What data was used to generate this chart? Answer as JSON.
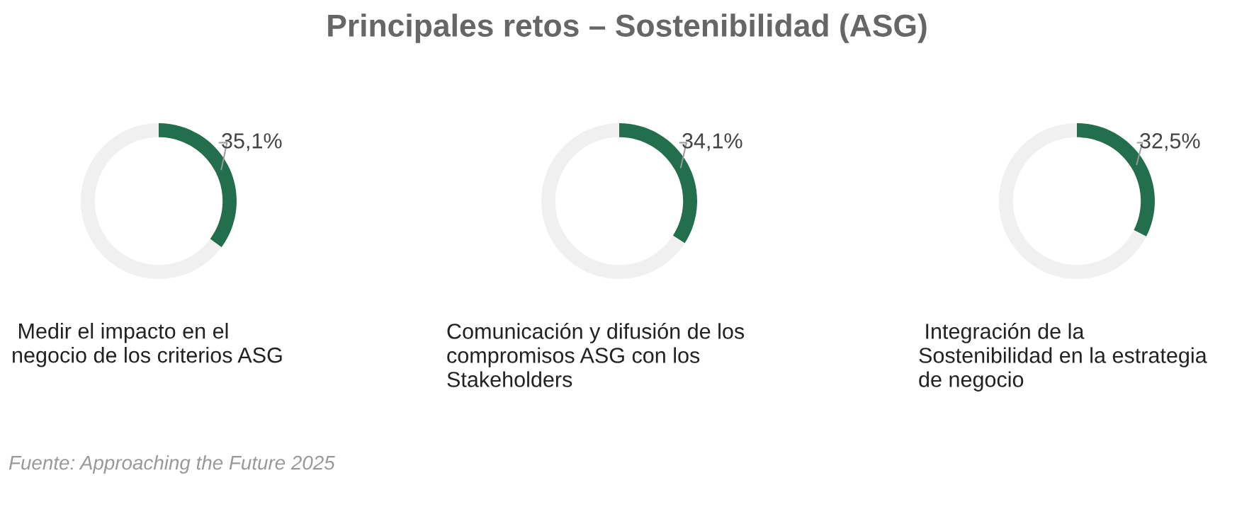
{
  "chart_data": [
    {
      "type": "other",
      "title": "Principales retos – Sostenibilidad (ASG)",
      "annotations": [
        "Fuente: Approaching the Future 2025"
      ]
    },
    {
      "type": "donut",
      "title": " Medir el impacto en el\nnegocio de los criterios ASG",
      "categories": [
        null,
        null
      ],
      "values": [
        35.1,
        64.9
      ],
      "colors": [
        "#236e4c",
        "#f0f0f0"
      ],
      "value_labels": [
        "35,1%",
        null
      ]
    },
    {
      "type": "donut",
      "title": "Comunicación y difusión de los\ncompromisos ASG con los\nStakeholders",
      "categories": [
        null,
        null
      ],
      "values": [
        34.1,
        65.9
      ],
      "colors": [
        "#236e4c",
        "#f0f0f0"
      ],
      "value_labels": [
        "34,1%",
        null
      ]
    },
    {
      "type": "donut",
      "title": " Integración de la\nSostenibilidad en la estrategia\nde negocio",
      "categories": [
        null,
        null
      ],
      "values": [
        32.5,
        67.5
      ],
      "colors": [
        "#236e4c",
        "#f0f0f0"
      ],
      "value_labels": [
        "32,5%",
        null
      ]
    }
  ]
}
